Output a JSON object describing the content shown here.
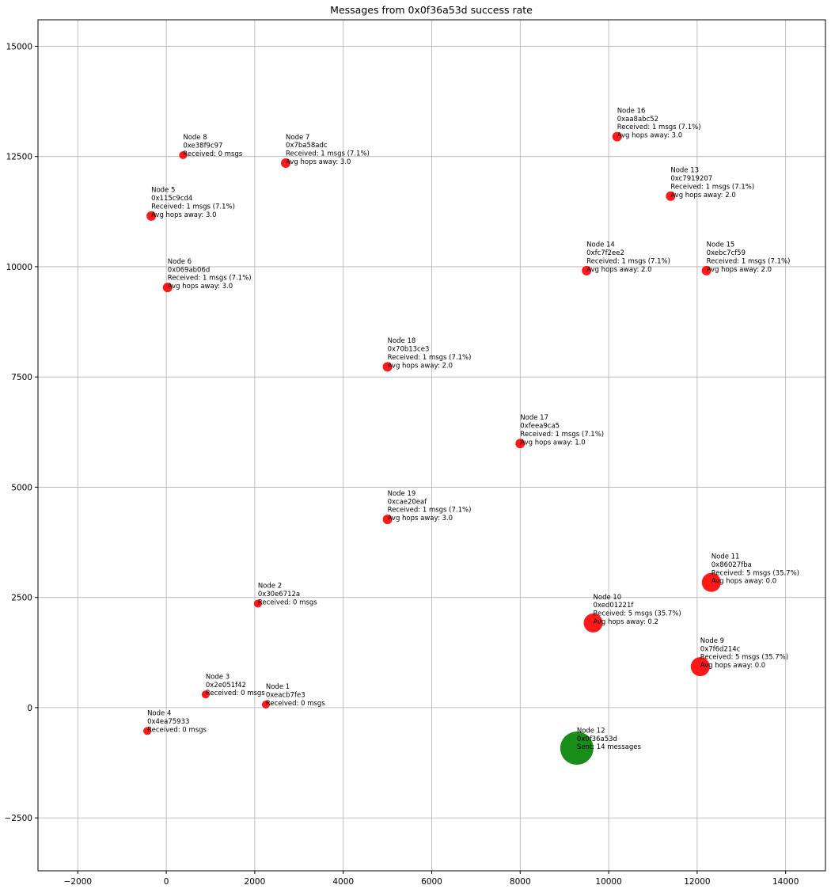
{
  "chart_data": {
    "type": "scatter",
    "title": "Messages from 0x0f36a53d success rate",
    "xlabel": "",
    "ylabel": "",
    "xlim": [
      -2900,
      14900
    ],
    "ylim": [
      -3700,
      15600
    ],
    "grid": true,
    "x_ticks": [
      -2000,
      0,
      2000,
      4000,
      6000,
      8000,
      10000,
      12000,
      14000
    ],
    "y_ticks": [
      -2500,
      0,
      2500,
      5000,
      7500,
      10000,
      12500,
      15000
    ],
    "x_tick_labels": [
      "−2000",
      "0",
      "2000",
      "4000",
      "6000",
      "8000",
      "10000",
      "12000",
      "14000"
    ],
    "y_tick_labels": [
      "−2500",
      "0",
      "2500",
      "5000",
      "7500",
      "10000",
      "12500",
      "15000"
    ],
    "points": [
      {
        "x": 2250,
        "y": 70,
        "size": "small",
        "color": "#ff0000",
        "label": [
          "Node 1",
          "0xeacb7fe3",
          "Received: 0 msgs"
        ]
      },
      {
        "x": 2070,
        "y": 2360,
        "size": "small",
        "color": "#ff0000",
        "label": [
          "Node 2",
          "0x30e6712a",
          "Received: 0 msgs"
        ]
      },
      {
        "x": 890,
        "y": 300,
        "size": "small",
        "color": "#ff0000",
        "label": [
          "Node 3",
          "0x2e051f42",
          "Received: 0 msgs"
        ]
      },
      {
        "x": -430,
        "y": -530,
        "size": "small",
        "color": "#ff0000",
        "label": [
          "Node 4",
          "0x4ea75933",
          "Received: 0 msgs"
        ]
      },
      {
        "x": -340,
        "y": 11150,
        "size": "medium",
        "color": "#ff0000",
        "label": [
          "Node 5",
          "0x115c9cd4",
          "Received: 1 msgs (7.1%)",
          "Avg hops away: 3.0"
        ]
      },
      {
        "x": 30,
        "y": 9530,
        "size": "medium",
        "color": "#ff0000",
        "label": [
          "Node 6",
          "0x069ab06d",
          "Received: 1 msgs (7.1%)",
          "Avg hops away: 3.0"
        ]
      },
      {
        "x": 2700,
        "y": 12350,
        "size": "medium",
        "color": "#ff0000",
        "label": [
          "Node 7",
          "0x7ba58adc",
          "Received: 1 msgs (7.1%)",
          "Avg hops away: 3.0"
        ]
      },
      {
        "x": 380,
        "y": 12530,
        "size": "small",
        "color": "#ff0000",
        "label": [
          "Node 8",
          "0xe38f9c97",
          "Received: 0 msgs"
        ]
      },
      {
        "x": 12070,
        "y": 930,
        "size": "large",
        "color": "#ff0000",
        "label": [
          "Node 9",
          "0x7f6d214c",
          "Received: 5 msgs (35.7%)",
          "Avg hops away: 0.0"
        ]
      },
      {
        "x": 9650,
        "y": 1920,
        "size": "large",
        "color": "#ff0000",
        "label": [
          "Node 10",
          "0xed01221f",
          "Received: 5 msgs (35.7%)",
          "Avg hops away: 0.2"
        ]
      },
      {
        "x": 12320,
        "y": 2840,
        "size": "large",
        "color": "#ff0000",
        "label": [
          "Node 11",
          "0x86027fba",
          "Received: 5 msgs (35.7%)",
          "Avg hops away: 0.0"
        ]
      },
      {
        "x": 9280,
        "y": -920,
        "size": "xlarge",
        "color": "#008000",
        "label": [
          "Node 12",
          "0x0f36a53d",
          "Sent: 14 messages"
        ]
      },
      {
        "x": 11400,
        "y": 11600,
        "size": "medium",
        "color": "#ff0000",
        "label": [
          "Node 13",
          "0xc7919207",
          "Received: 1 msgs (7.1%)",
          "Avg hops away: 2.0"
        ]
      },
      {
        "x": 9500,
        "y": 9910,
        "size": "medium",
        "color": "#ff0000",
        "label": [
          "Node 14",
          "0xfc7f2ee2",
          "Received: 1 msgs (7.1%)",
          "Avg hops away: 2.0"
        ]
      },
      {
        "x": 12210,
        "y": 9910,
        "size": "medium",
        "color": "#ff0000",
        "label": [
          "Node 15",
          "0xebc7cf59",
          "Received: 1 msgs (7.1%)",
          "Avg hops away: 2.0"
        ]
      },
      {
        "x": 10190,
        "y": 12950,
        "size": "medium",
        "color": "#ff0000",
        "label": [
          "Node 16",
          "0xaa8abc52",
          "Received: 1 msgs (7.1%)",
          "Avg hops away: 3.0"
        ]
      },
      {
        "x": 8000,
        "y": 5990,
        "size": "medium",
        "color": "#ff0000",
        "label": [
          "Node 17",
          "0xfeea9ca5",
          "Received: 1 msgs (7.1%)",
          "Avg hops away: 1.0"
        ]
      },
      {
        "x": 5000,
        "y": 7730,
        "size": "medium",
        "color": "#ff0000",
        "label": [
          "Node 18",
          "0x70b13ce3",
          "Received: 1 msgs (7.1%)",
          "Avg hops away: 2.0"
        ]
      },
      {
        "x": 5000,
        "y": 4270,
        "size": "medium",
        "color": "#ff0000",
        "label": [
          "Node 19",
          "0xcae20eaf",
          "Received: 1 msgs (7.1%)",
          "Avg hops away: 3.0"
        ]
      }
    ]
  }
}
